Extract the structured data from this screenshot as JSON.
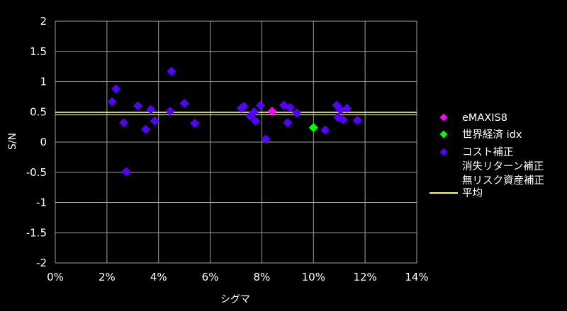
{
  "chart_data": {
    "type": "scatter",
    "title": "",
    "xlabel": "シグマ",
    "ylabel": "S/N",
    "xlim": [
      0,
      14
    ],
    "ylim": [
      -2,
      2
    ],
    "x_ticks": [
      0,
      2,
      4,
      6,
      8,
      10,
      12,
      14
    ],
    "x_tick_labels": [
      "0%",
      "2%",
      "4%",
      "6%",
      "8%",
      "10%",
      "12%",
      "14%"
    ],
    "y_ticks": [
      2,
      1.5,
      1,
      0.5,
      0,
      -0.5,
      -1,
      -1.5,
      -2
    ],
    "y_tick_labels": [
      "2",
      "1.5",
      "1",
      "0.5",
      "0",
      "-0.5",
      "-1",
      "-1.5",
      "-2"
    ],
    "grid": true,
    "legend_position": "right",
    "background_color": "#000000",
    "grid_color": "#a0a0a0",
    "series": [
      {
        "name": "eMAXIS8",
        "color": "#ff00ff",
        "marker": "diamond",
        "points": [
          [
            8.4,
            0.51
          ]
        ]
      },
      {
        "name": "世界経済 idx",
        "color": "#00ff00",
        "marker": "diamond",
        "points": [
          [
            10.0,
            0.24
          ]
        ]
      },
      {
        "name": "コスト補正",
        "color": "#5500ff",
        "marker": "diamond",
        "points": [
          [
            2.2,
            0.67
          ],
          [
            2.35,
            0.88
          ],
          [
            2.65,
            0.32
          ],
          [
            2.75,
            -0.49
          ],
          [
            3.2,
            0.6
          ],
          [
            3.5,
            0.21
          ],
          [
            3.7,
            0.54
          ],
          [
            3.85,
            0.35
          ],
          [
            4.45,
            0.51
          ],
          [
            4.5,
            1.17
          ],
          [
            5.0,
            0.64
          ],
          [
            5.4,
            0.31
          ],
          [
            7.2,
            0.56
          ],
          [
            7.3,
            0.59
          ],
          [
            7.55,
            0.43
          ],
          [
            7.7,
            0.5
          ],
          [
            7.75,
            0.35
          ],
          [
            7.95,
            0.61
          ],
          [
            8.15,
            0.05
          ],
          [
            8.85,
            0.61
          ],
          [
            9.0,
            0.32
          ],
          [
            9.1,
            0.57
          ],
          [
            9.35,
            0.48
          ],
          [
            10.45,
            0.2
          ],
          [
            10.9,
            0.61
          ],
          [
            10.95,
            0.41
          ],
          [
            11.05,
            0.53
          ],
          [
            11.15,
            0.37
          ],
          [
            11.3,
            0.56
          ],
          [
            11.7,
            0.36
          ]
        ]
      },
      {
        "name": "消失リターン補正",
        "color": "#5500ff",
        "marker": "none",
        "points": []
      },
      {
        "name": "無リスク資産補正",
        "color": "#5500ff",
        "marker": "none",
        "points": []
      }
    ],
    "reference_line": {
      "name": "平均",
      "y": 0.47,
      "color": "#ffff66"
    }
  }
}
